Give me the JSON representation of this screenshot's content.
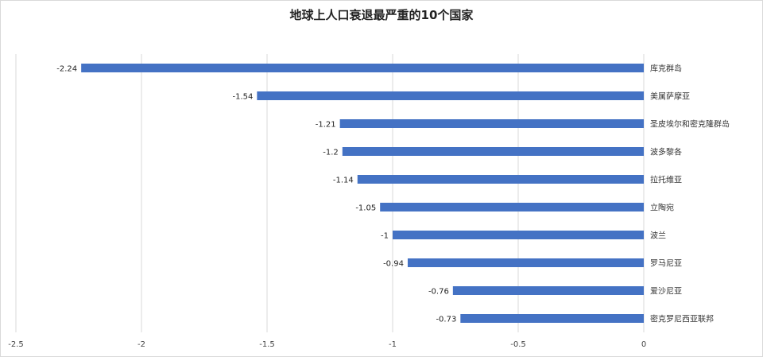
{
  "chart_data": {
    "type": "bar",
    "orientation": "horizontal",
    "title": "地球上人口衰退最严重的10个国家",
    "categories": [
      "库克群岛",
      "美属萨摩亚",
      "圣皮埃尔和密克隆群岛",
      "波多黎各",
      "拉托维亚",
      "立陶宛",
      "波兰",
      "罗马尼亚",
      "爱沙尼亚",
      "密克罗尼西亚联邦"
    ],
    "values": [
      -2.24,
      -1.54,
      -1.21,
      -1.2,
      -1.14,
      -1.05,
      -1,
      -0.94,
      -0.76,
      -0.73
    ],
    "data_labels": [
      "-2.24",
      "-1.54",
      "-1.21",
      "-1.2",
      "-1.14",
      "-1.05",
      "-1",
      "-0.94",
      "-0.76",
      "-0.73"
    ],
    "x_ticks": [
      -2.5,
      -2,
      -1.5,
      -1,
      -0.5,
      0
    ],
    "x_tick_labels": [
      "-2.5",
      "-2",
      "-1.5",
      "-1",
      "-0.5",
      "0"
    ],
    "xlim": [
      -2.5,
      0
    ],
    "grid": "vertical",
    "legend": "none",
    "bar_color": "#4472c4",
    "grid_color": "#d9d9d9"
  }
}
